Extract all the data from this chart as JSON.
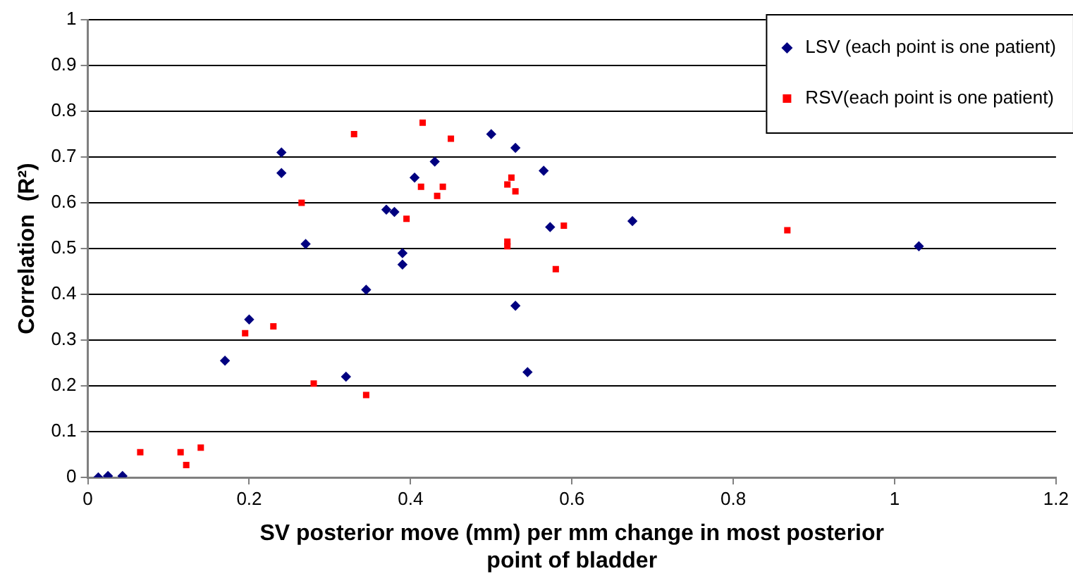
{
  "chart_data": {
    "type": "scatter",
    "xlabel": "SV posterior move (mm) per mm change in most posterior point of bladder",
    "ylabel": "Correlation  (R²)",
    "xlim": [
      0,
      1.2
    ],
    "xticks": [
      0,
      0.2,
      0.4,
      0.6,
      0.8,
      1,
      1.2
    ],
    "ylim": [
      0,
      1
    ],
    "yticks": [
      0,
      0.1,
      0.2,
      0.3,
      0.4,
      0.5,
      0.6,
      0.7,
      0.8,
      0.9,
      1
    ],
    "grid": "y",
    "legend": "top right",
    "series": [
      {
        "name": "LSV (each point is one patient)",
        "color": "#000080",
        "marker": "diamond",
        "x": [
          0.013,
          0.025,
          0.043,
          0.17,
          0.2,
          0.24,
          0.24,
          0.27,
          0.345,
          0.32,
          0.37,
          0.38,
          0.39,
          0.39,
          0.405,
          0.43,
          0.5,
          0.53,
          0.565,
          0.573,
          0.53,
          0.545,
          0.675,
          1.03
        ],
        "values": [
          0,
          0.003,
          0.003,
          0.255,
          0.345,
          0.71,
          0.665,
          0.51,
          0.41,
          0.22,
          0.585,
          0.58,
          0.49,
          0.465,
          0.655,
          0.69,
          0.75,
          0.72,
          0.67,
          0.547,
          0.375,
          0.23,
          0.56,
          0.505
        ]
      },
      {
        "name": "RSV(each point is one patient)",
        "color": "#ff0000",
        "marker": "square",
        "x": [
          0.065,
          0.115,
          0.122,
          0.14,
          0.195,
          0.23,
          0.28,
          0.345,
          0.265,
          0.33,
          0.415,
          0.45,
          0.413,
          0.44,
          0.433,
          0.395,
          0.52,
          0.525,
          0.53,
          0.52,
          0.52,
          0.59,
          0.58,
          0.867
        ],
        "values": [
          0.055,
          0.055,
          0.027,
          0.065,
          0.315,
          0.33,
          0.205,
          0.18,
          0.6,
          0.75,
          0.775,
          0.74,
          0.635,
          0.635,
          0.615,
          0.565,
          0.64,
          0.655,
          0.625,
          0.515,
          0.505,
          0.55,
          0.455,
          0.54
        ]
      }
    ]
  }
}
